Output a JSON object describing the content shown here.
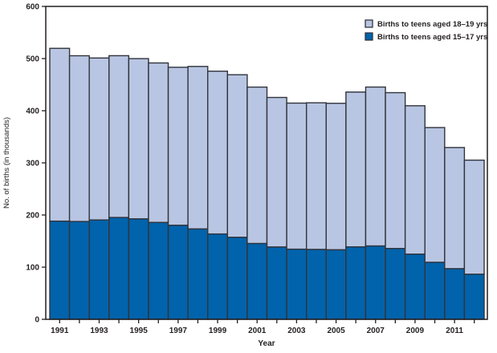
{
  "chart_data": {
    "type": "bar",
    "stacked": true,
    "title": "",
    "xlabel": "Year",
    "ylabel": "No. of births (in thousands)",
    "ylim": [
      0,
      600
    ],
    "yticks": [
      0,
      100,
      200,
      300,
      400,
      500,
      600
    ],
    "categories": [
      "1991",
      "1992",
      "1993",
      "1994",
      "1995",
      "1996",
      "1997",
      "1998",
      "1999",
      "2000",
      "2001",
      "2002",
      "2003",
      "2004",
      "2005",
      "2006",
      "2007",
      "2008",
      "2009",
      "2010",
      "2011",
      "2012"
    ],
    "x_labeled_categories": [
      "1991",
      "1993",
      "1995",
      "1997",
      "1999",
      "2001",
      "2003",
      "2005",
      "2007",
      "2009",
      "2011"
    ],
    "grid": "off",
    "series": [
      {
        "name": "Births to teens aged 15–17 yrs",
        "stack_order": "bottom",
        "color": "#0063ac",
        "values": [
          188.2,
          187.5,
          190.5,
          195.2,
          192.5,
          185.7,
          180.2,
          173.2,
          163.6,
          157.2,
          145.3,
          138.6,
          134.4,
          133.9,
          133.2,
          138.9,
          140.6,
          135.7,
          124.9,
          109.2,
          97.0,
          86.4
        ]
      },
      {
        "name": "Births to teens aged 18–19 yrs",
        "stack_order": "top",
        "color": "#b9c6e3",
        "values": [
          331.4,
          317.9,
          310.6,
          310.3,
          307.4,
          305.9,
          303.1,
          311.7,
          312.2,
          311.8,
          300.0,
          286.8,
          280.2,
          281.3,
          281.0,
          296.9,
          304.8,
          298.9,
          284.6,
          258.5,
          232.4,
          218.8
        ]
      }
    ],
    "legend": {
      "position": "top-right",
      "items": [
        {
          "label": "Births to teens aged 18–19 yrs",
          "color": "#b9c6e3"
        },
        {
          "label": "Births to teens aged 15–17 yrs",
          "color": "#0063ac"
        }
      ]
    },
    "colors": {
      "bar_outline": "#31343c",
      "axis": "#231f20",
      "text": "#231f20",
      "background": "#ffffff"
    }
  }
}
